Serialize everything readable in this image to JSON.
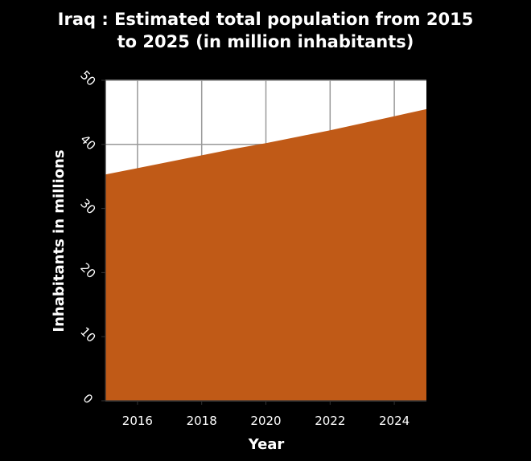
{
  "chart_data": {
    "type": "area",
    "title_lines": [
      "Iraq : Estimated total population from 2015",
      "to 2025 (in million inhabitants)"
    ],
    "xlabel": "Year",
    "ylabel": "Inhabitants in millions",
    "x": [
      2015,
      2016,
      2017,
      2018,
      2019,
      2020,
      2021,
      2022,
      2023,
      2024,
      2025
    ],
    "series": [
      {
        "values": [
          35.3,
          36.3,
          37.3,
          38.3,
          39.3,
          40.2,
          41.2,
          42.2,
          43.3,
          44.4,
          45.5
        ]
      }
    ],
    "xlim": [
      2015,
      2025
    ],
    "ylim": [
      0,
      50
    ],
    "xticks": [
      2016,
      2018,
      2020,
      2022,
      2024
    ],
    "yticks": [
      0,
      10,
      20,
      30,
      40,
      50
    ],
    "grid": true,
    "colors": {
      "fill": "#c05a17",
      "background": "#000000",
      "grid": "#999999",
      "text": "#ffffff"
    }
  }
}
